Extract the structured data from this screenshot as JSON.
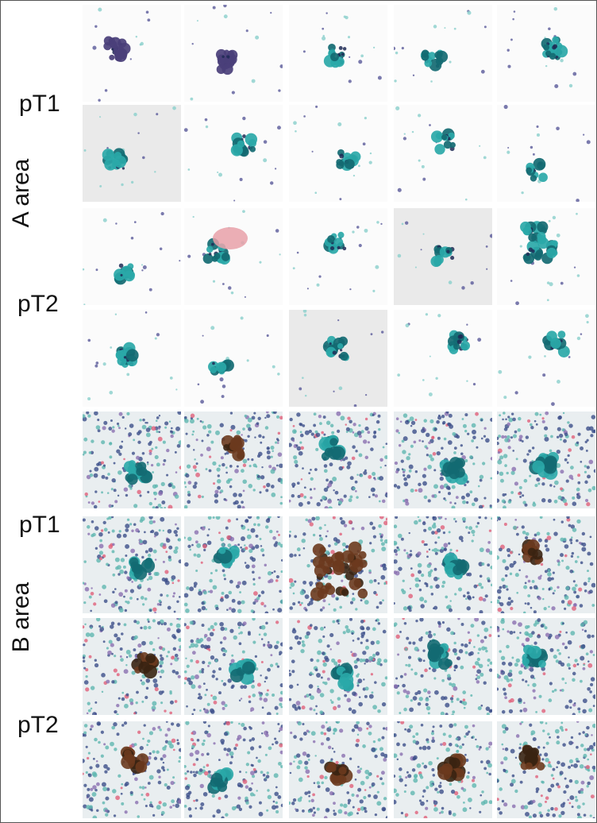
{
  "sections": [
    {
      "area_label": "A area",
      "rows": [
        {
          "label": "pT1"
        },
        {
          "label": "pT2"
        }
      ]
    },
    {
      "area_label": "B area",
      "rows": [
        {
          "label": "pT1"
        },
        {
          "label": "pT2"
        }
      ]
    }
  ],
  "grid": {
    "columns": 5,
    "rows": 8
  },
  "tile_kinds": {
    "A": "clean-cluster",
    "B": "dense-smear"
  },
  "colors": {
    "teal_cell": "#2aa8a8",
    "dark_teal": "#136a72",
    "purple_nucleus": "#4a3f7a",
    "brown_cluster": "#6b3a1e",
    "pink_red": "#e0607a"
  }
}
